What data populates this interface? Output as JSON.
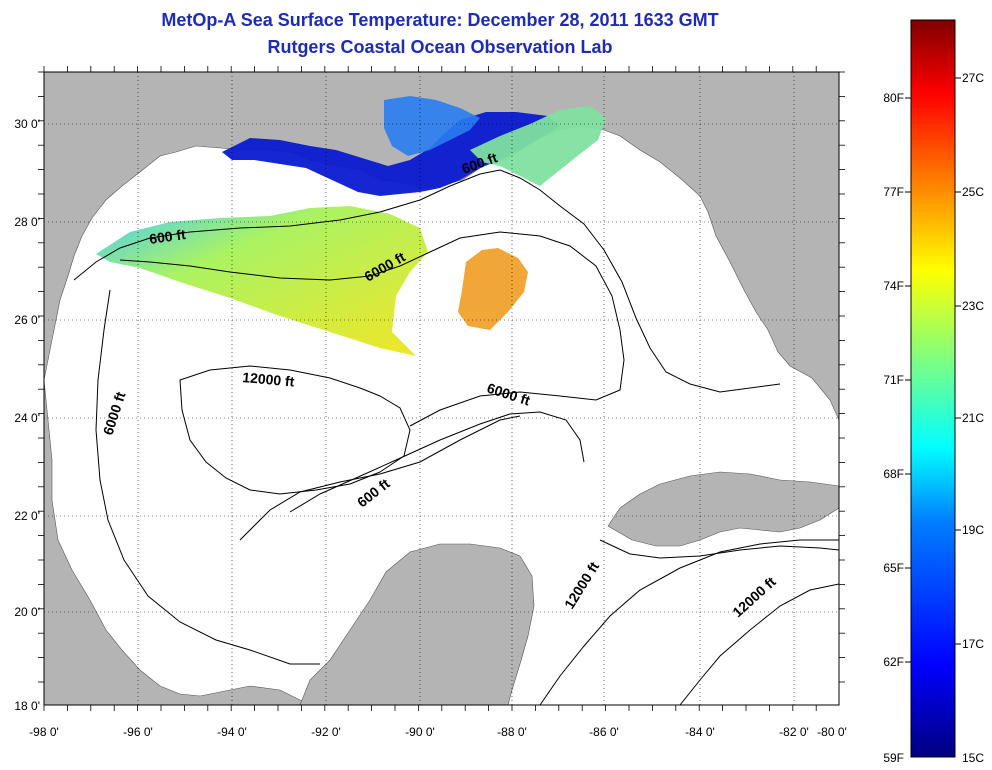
{
  "header": {
    "title": "MetOp-A Sea Surface Temperature:  December 28, 2011 1633 GMT",
    "subtitle": "Rutgers Coastal Ocean Observation Lab"
  },
  "axes": {
    "lat_labels": [
      "30 0'",
      "28 0'",
      "26 0'",
      "24 0'",
      "22 0'",
      "20 0'",
      "18 0'"
    ],
    "lon_labels": [
      "-98 0'",
      "-96 0'",
      "-94 0'",
      "-92 0'",
      "-90 0'",
      "-88 0'",
      "-86 0'",
      "-84 0'",
      "-82 0'",
      "-80 0'"
    ]
  },
  "contours": [
    {
      "label": "600 ft"
    },
    {
      "label": "600 ft"
    },
    {
      "label": "6000 ft"
    },
    {
      "label": "12000 ft"
    },
    {
      "label": "6000 ft"
    },
    {
      "label": "6000 ft"
    },
    {
      "label": "600 ft"
    },
    {
      "label": "12000 ft"
    },
    {
      "label": "12000 ft"
    }
  ],
  "colorbar": {
    "fahrenheit": [
      "80F",
      "77F",
      "74F",
      "71F",
      "68F",
      "65F",
      "62F",
      "59F"
    ],
    "celsius": [
      "27C",
      "25C",
      "23C",
      "21C",
      "19C",
      "17C",
      "15C"
    ],
    "stops": [
      "#00007f",
      "#0000ff",
      "#007fff",
      "#00ffff",
      "#7fff7f",
      "#ffff00",
      "#ff7f00",
      "#ff0000",
      "#7f0000"
    ]
  },
  "colors": {
    "title": "#1e2cb4",
    "land": "#b4b4b4",
    "ocean": "#ffffff"
  }
}
